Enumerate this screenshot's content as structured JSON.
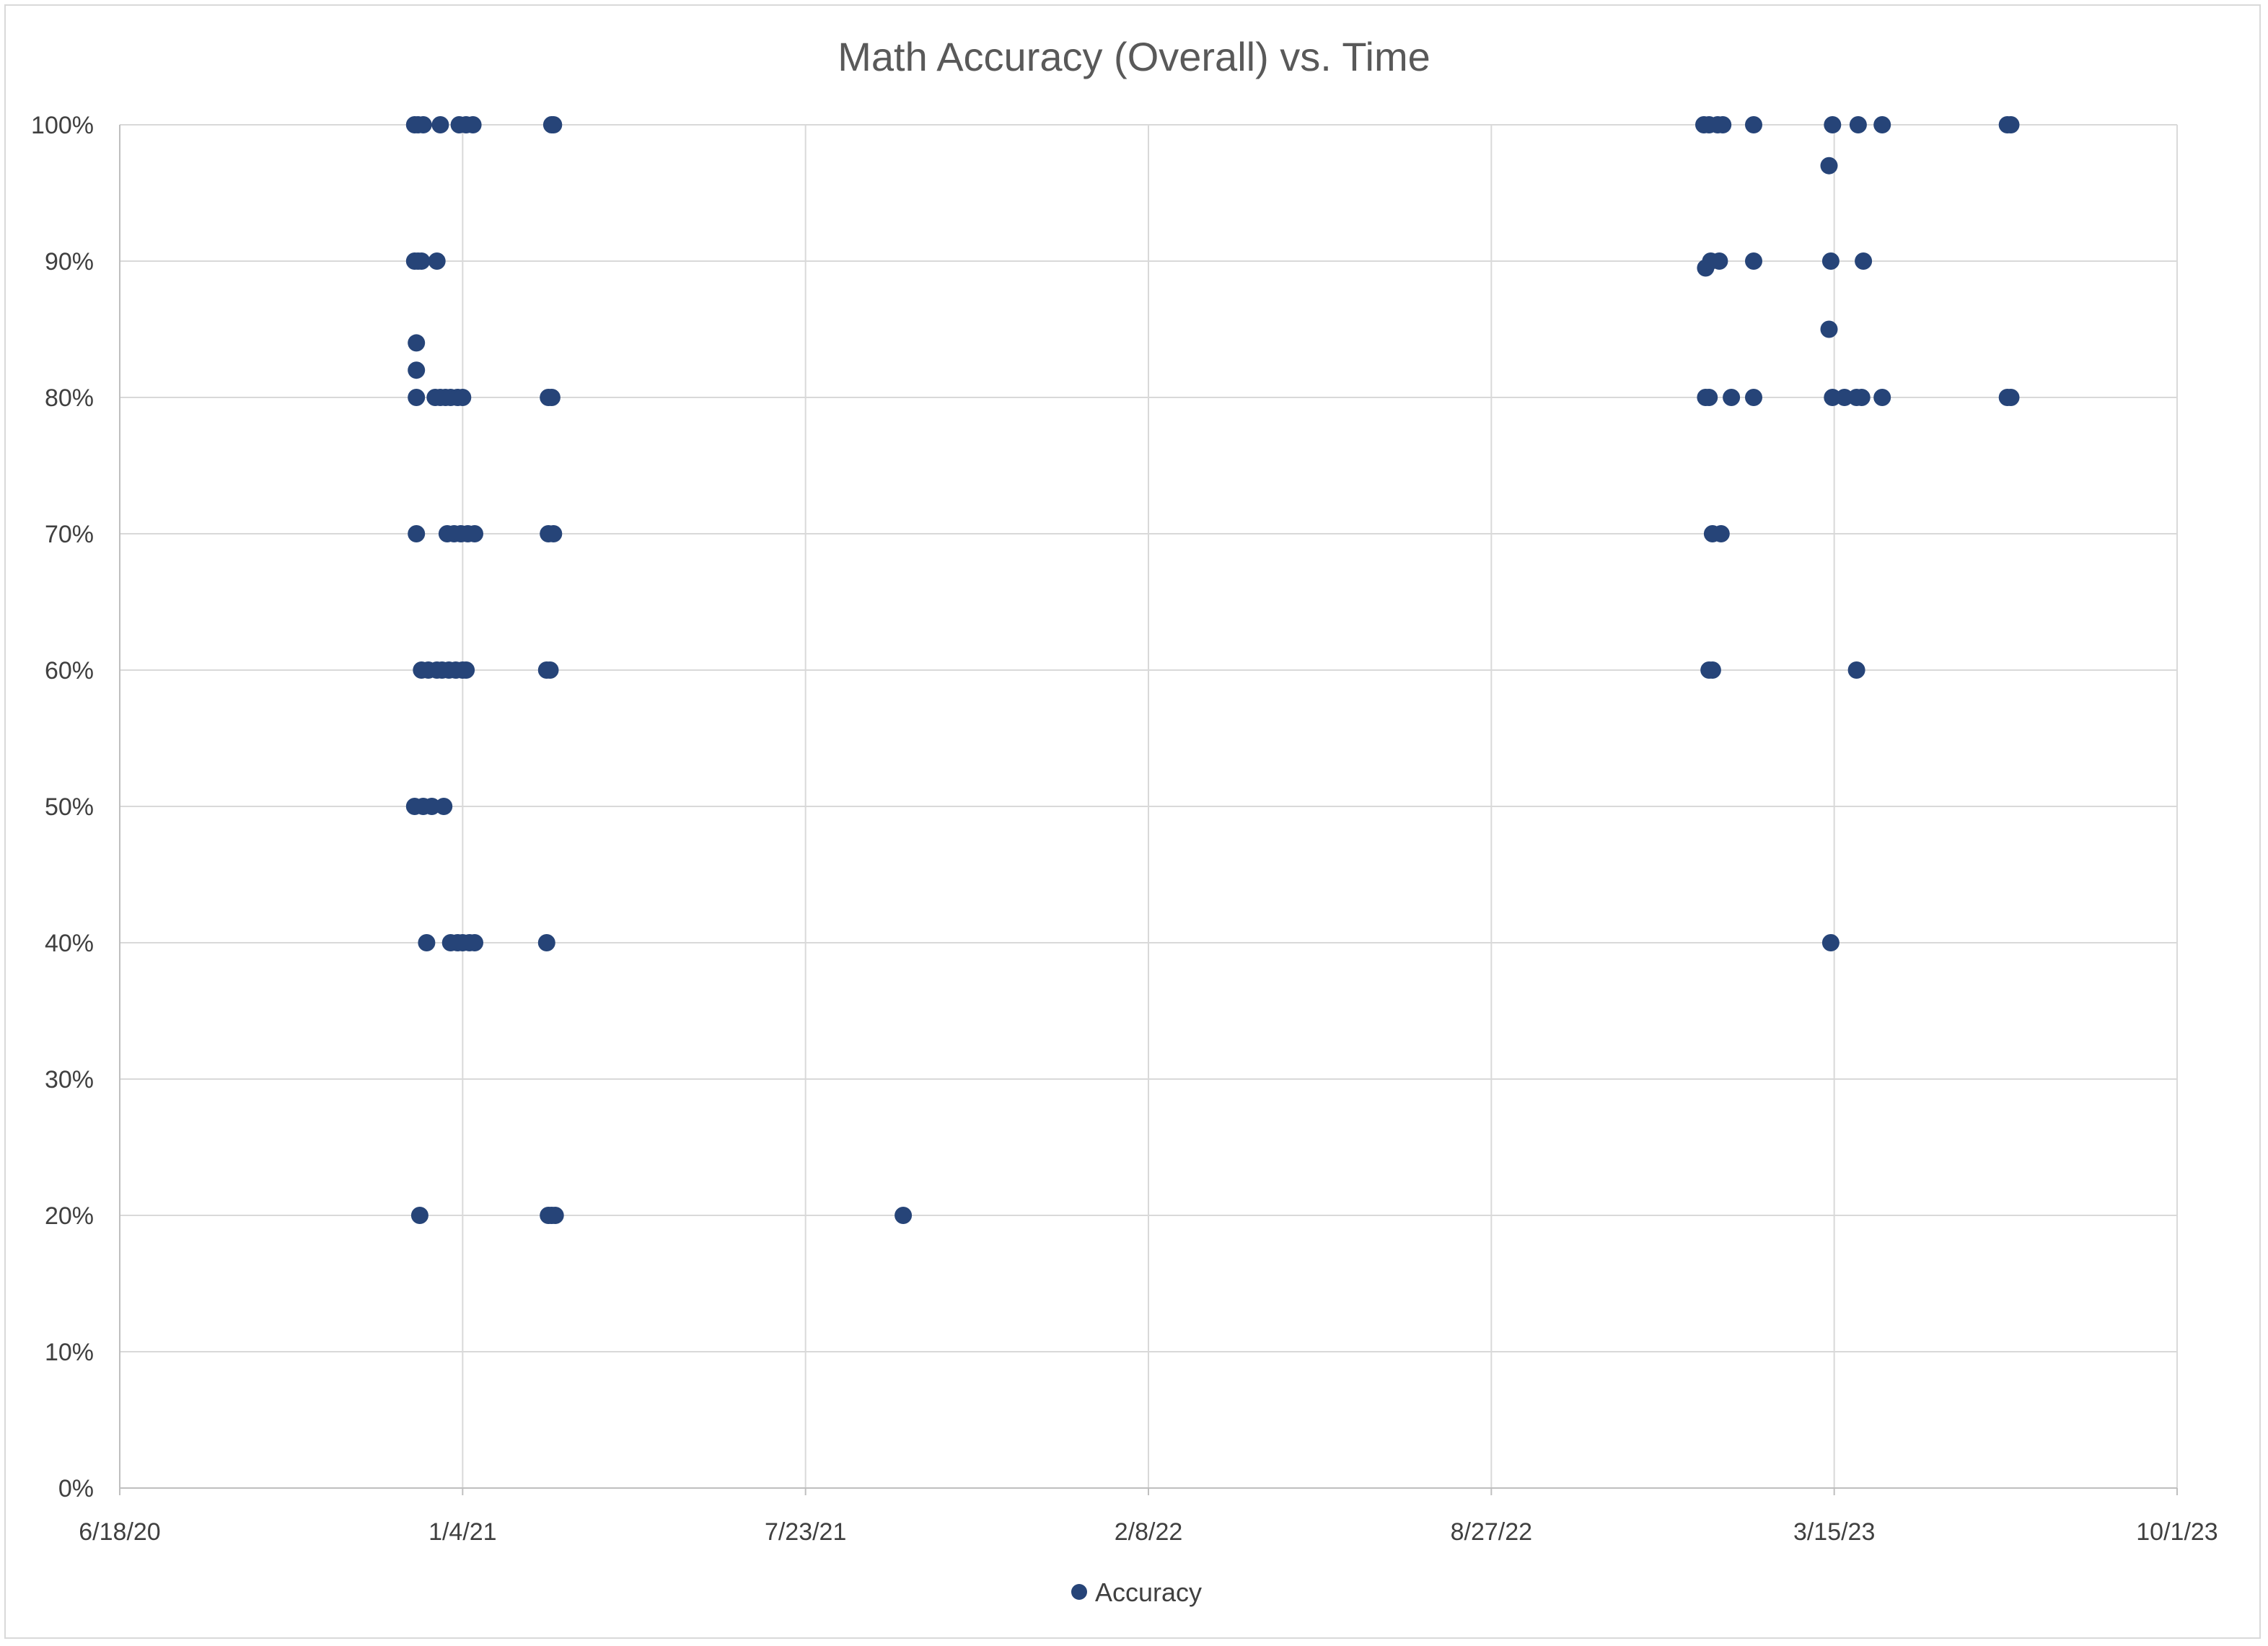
{
  "chart_data": {
    "type": "scatter",
    "title": "Math Accuracy (Overall) vs. Time",
    "xlabel": "",
    "ylabel": "",
    "x_axis": {
      "type": "date",
      "min": "2020-06-18",
      "max": "2023-10-01",
      "tick_labels": [
        "6/18/20",
        "1/4/21",
        "7/23/21",
        "2/8/22",
        "8/27/22",
        "3/15/23",
        "10/1/23"
      ]
    },
    "y_axis": {
      "min": 0,
      "max": 100,
      "unit": "%",
      "tick_labels": [
        "0%",
        "10%",
        "20%",
        "30%",
        "40%",
        "50%",
        "60%",
        "70%",
        "80%",
        "90%",
        "100%"
      ]
    },
    "grid": true,
    "legend_position": "bottom",
    "marker_color": "#264478",
    "series": [
      {
        "name": "Accuracy",
        "points": [
          {
            "x": "2020-12-07",
            "y": 100
          },
          {
            "x": "2020-12-09",
            "y": 100
          },
          {
            "x": "2020-12-12",
            "y": 100
          },
          {
            "x": "2020-12-22",
            "y": 100
          },
          {
            "x": "2021-01-02",
            "y": 100
          },
          {
            "x": "2021-01-06",
            "y": 100
          },
          {
            "x": "2021-01-10",
            "y": 100
          },
          {
            "x": "2021-02-25",
            "y": 100
          },
          {
            "x": "2021-02-26",
            "y": 100
          },
          {
            "x": "2020-12-07",
            "y": 90
          },
          {
            "x": "2020-12-09",
            "y": 90
          },
          {
            "x": "2020-12-11",
            "y": 90
          },
          {
            "x": "2020-12-20",
            "y": 90
          },
          {
            "x": "2020-12-08",
            "y": 84
          },
          {
            "x": "2020-12-08",
            "y": 82
          },
          {
            "x": "2020-12-08",
            "y": 80
          },
          {
            "x": "2020-12-19",
            "y": 80
          },
          {
            "x": "2020-12-22",
            "y": 80
          },
          {
            "x": "2020-12-25",
            "y": 80
          },
          {
            "x": "2020-12-28",
            "y": 80
          },
          {
            "x": "2021-01-01",
            "y": 80
          },
          {
            "x": "2021-01-04",
            "y": 80
          },
          {
            "x": "2021-02-23",
            "y": 80
          },
          {
            "x": "2021-02-25",
            "y": 80
          },
          {
            "x": "2020-12-08",
            "y": 70
          },
          {
            "x": "2020-12-26",
            "y": 70
          },
          {
            "x": "2020-12-30",
            "y": 70
          },
          {
            "x": "2021-01-03",
            "y": 70
          },
          {
            "x": "2021-01-07",
            "y": 70
          },
          {
            "x": "2021-01-11",
            "y": 70
          },
          {
            "x": "2021-02-23",
            "y": 70
          },
          {
            "x": "2021-02-26",
            "y": 70
          },
          {
            "x": "2020-12-11",
            "y": 60
          },
          {
            "x": "2020-12-15",
            "y": 60
          },
          {
            "x": "2020-12-20",
            "y": 60
          },
          {
            "x": "2020-12-23",
            "y": 60
          },
          {
            "x": "2020-12-27",
            "y": 60
          },
          {
            "x": "2020-12-31",
            "y": 60
          },
          {
            "x": "2021-01-04",
            "y": 60
          },
          {
            "x": "2021-01-06",
            "y": 60
          },
          {
            "x": "2021-02-22",
            "y": 60
          },
          {
            "x": "2021-02-24",
            "y": 60
          },
          {
            "x": "2020-12-07",
            "y": 50
          },
          {
            "x": "2020-12-12",
            "y": 50
          },
          {
            "x": "2020-12-17",
            "y": 50
          },
          {
            "x": "2020-12-24",
            "y": 50
          },
          {
            "x": "2020-12-14",
            "y": 40
          },
          {
            "x": "2020-12-28",
            "y": 40
          },
          {
            "x": "2021-01-01",
            "y": 40
          },
          {
            "x": "2021-01-04",
            "y": 40
          },
          {
            "x": "2021-01-08",
            "y": 40
          },
          {
            "x": "2021-01-11",
            "y": 40
          },
          {
            "x": "2021-02-22",
            "y": 40
          },
          {
            "x": "2020-12-10",
            "y": 20
          },
          {
            "x": "2021-02-23",
            "y": 20
          },
          {
            "x": "2021-02-25",
            "y": 20
          },
          {
            "x": "2021-02-27",
            "y": 20
          },
          {
            "x": "2021-09-18",
            "y": 20
          },
          {
            "x": "2022-12-29",
            "y": 100
          },
          {
            "x": "2023-01-01",
            "y": 100
          },
          {
            "x": "2023-01-06",
            "y": 100
          },
          {
            "x": "2023-01-09",
            "y": 100
          },
          {
            "x": "2023-01-27",
            "y": 100
          },
          {
            "x": "2023-03-14",
            "y": 100
          },
          {
            "x": "2023-03-29",
            "y": 100
          },
          {
            "x": "2023-04-12",
            "y": 100
          },
          {
            "x": "2023-06-24",
            "y": 100
          },
          {
            "x": "2023-06-26",
            "y": 100
          },
          {
            "x": "2023-03-12",
            "y": 97
          },
          {
            "x": "2022-12-30",
            "y": 89.5
          },
          {
            "x": "2023-01-02",
            "y": 90
          },
          {
            "x": "2023-01-07",
            "y": 90
          },
          {
            "x": "2023-01-27",
            "y": 90
          },
          {
            "x": "2023-03-13",
            "y": 90
          },
          {
            "x": "2023-04-01",
            "y": 90
          },
          {
            "x": "2023-03-12",
            "y": 85
          },
          {
            "x": "2022-12-30",
            "y": 80
          },
          {
            "x": "2023-01-01",
            "y": 80
          },
          {
            "x": "2023-01-14",
            "y": 80
          },
          {
            "x": "2023-01-27",
            "y": 80
          },
          {
            "x": "2023-03-14",
            "y": 80
          },
          {
            "x": "2023-03-21",
            "y": 80
          },
          {
            "x": "2023-03-28",
            "y": 80
          },
          {
            "x": "2023-03-31",
            "y": 80
          },
          {
            "x": "2023-04-12",
            "y": 80
          },
          {
            "x": "2023-06-24",
            "y": 80
          },
          {
            "x": "2023-06-26",
            "y": 80
          },
          {
            "x": "2023-01-03",
            "y": 70
          },
          {
            "x": "2023-01-08",
            "y": 70
          },
          {
            "x": "2023-01-01",
            "y": 60
          },
          {
            "x": "2023-01-03",
            "y": 60
          },
          {
            "x": "2023-03-28",
            "y": 60
          },
          {
            "x": "2023-03-13",
            "y": 40
          }
        ]
      }
    ]
  }
}
